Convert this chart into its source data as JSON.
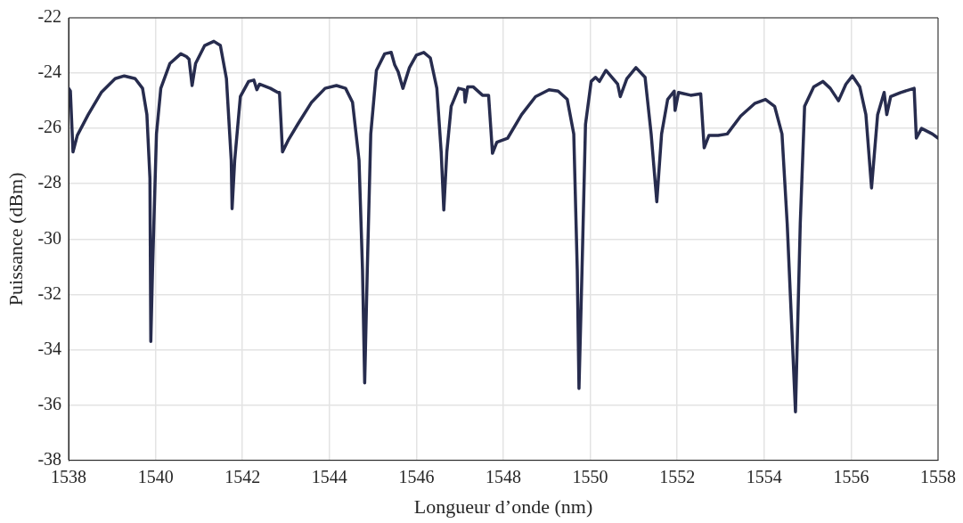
{
  "chart_data": {
    "type": "line",
    "xlabel": "Longueur d’onde (nm)",
    "ylabel": "Puissance (dBm)",
    "xlim": [
      1538,
      1558
    ],
    "xticks": [
      1538,
      1540,
      1542,
      1544,
      1546,
      1548,
      1550,
      1552,
      1554,
      1556,
      1558
    ],
    "ylim": [
      -38,
      -22
    ],
    "yticks": [
      -38,
      -36,
      -34,
      -32,
      -30,
      -28,
      -26,
      -24,
      -22
    ],
    "grid": true,
    "legend": false,
    "marker": "none",
    "line_style": "solid",
    "series": [
      {
        "color": "#272c4e",
        "x": [
          1538,
          1538.04,
          1538.1,
          1538.2,
          1538.45,
          1538.75,
          1539.07,
          1539.28,
          1539.53,
          1539.7,
          1539.8,
          1539.87,
          1539.89,
          1539.93,
          1540.02,
          1540.12,
          1540.33,
          1540.58,
          1540.71,
          1540.77,
          1540.84,
          1540.92,
          1541.13,
          1541.34,
          1541.49,
          1541.63,
          1541.74,
          1541.76,
          1541.82,
          1541.95,
          1542.14,
          1542.26,
          1542.33,
          1542.39,
          1542.64,
          1542.81,
          1542.85,
          1542.92,
          1543.06,
          1543.27,
          1543.59,
          1543.9,
          1544.16,
          1544.37,
          1544.53,
          1544.68,
          1544.76,
          1544.81,
          1544.87,
          1544.95,
          1545.08,
          1545.27,
          1545.42,
          1545.5,
          1545.58,
          1545.69,
          1545.84,
          1546.0,
          1546.17,
          1546.32,
          1546.47,
          1546.57,
          1546.63,
          1546.7,
          1546.8,
          1546.97,
          1547.1,
          1547.12,
          1547.18,
          1547.31,
          1547.52,
          1547.66,
          1547.75,
          1547.85,
          1548.1,
          1548.42,
          1548.74,
          1549.05,
          1549.26,
          1549.47,
          1549.62,
          1549.7,
          1549.74,
          1549.81,
          1549.89,
          1550.02,
          1550.12,
          1550.21,
          1550.36,
          1550.63,
          1550.69,
          1550.84,
          1551.05,
          1551.26,
          1551.4,
          1551.53,
          1551.64,
          1551.78,
          1551.93,
          1551.95,
          1552.03,
          1552.31,
          1552.54,
          1552.62,
          1552.73,
          1552.94,
          1553.15,
          1553.46,
          1553.78,
          1554.03,
          1554.24,
          1554.41,
          1554.53,
          1554.72,
          1554.83,
          1554.93,
          1555.14,
          1555.35,
          1555.52,
          1555.71,
          1555.88,
          1556.03,
          1556.2,
          1556.34,
          1556.47,
          1556.61,
          1556.76,
          1556.82,
          1556.91,
          1557.14,
          1557.45,
          1557.5,
          1557.62,
          1557.87,
          1558
        ],
        "values": [
          -24.55,
          -24.65,
          -26.85,
          -26.25,
          -25.5,
          -24.7,
          -24.2,
          -24.1,
          -24.2,
          -24.55,
          -25.5,
          -27.8,
          -33.7,
          -31.1,
          -26.2,
          -24.55,
          -23.65,
          -23.3,
          -23.4,
          -23.5,
          -24.45,
          -23.65,
          -23.0,
          -22.85,
          -23.0,
          -24.2,
          -27.15,
          -28.9,
          -27.15,
          -24.85,
          -24.3,
          -24.25,
          -24.6,
          -24.4,
          -24.55,
          -24.7,
          -24.7,
          -26.85,
          -26.4,
          -25.85,
          -25.05,
          -24.55,
          -24.45,
          -24.55,
          -25.05,
          -27.15,
          -31.1,
          -35.2,
          -31.1,
          -26.2,
          -23.9,
          -23.3,
          -23.25,
          -23.7,
          -23.95,
          -24.55,
          -23.8,
          -23.35,
          -23.25,
          -23.45,
          -24.55,
          -26.85,
          -28.95,
          -26.85,
          -25.2,
          -24.55,
          -24.6,
          -25.05,
          -24.5,
          -24.5,
          -24.8,
          -24.8,
          -26.9,
          -26.5,
          -26.35,
          -25.5,
          -24.85,
          -24.6,
          -24.65,
          -24.95,
          -26.2,
          -31.1,
          -35.4,
          -31.1,
          -25.85,
          -24.3,
          -24.15,
          -24.3,
          -23.9,
          -24.4,
          -24.85,
          -24.2,
          -23.8,
          -24.15,
          -26.2,
          -28.65,
          -26.2,
          -24.95,
          -24.65,
          -25.35,
          -24.7,
          -24.8,
          -24.75,
          -26.7,
          -26.25,
          -26.25,
          -26.2,
          -25.55,
          -25.1,
          -24.95,
          -25.2,
          -26.2,
          -29.45,
          -36.25,
          -29.45,
          -25.2,
          -24.5,
          -24.3,
          -24.55,
          -25.0,
          -24.4,
          -24.1,
          -24.5,
          -25.5,
          -28.15,
          -25.5,
          -24.7,
          -25.5,
          -24.85,
          -24.7,
          -24.55,
          -26.35,
          -26.0,
          -26.2,
          -26.35
        ]
      }
    ]
  }
}
